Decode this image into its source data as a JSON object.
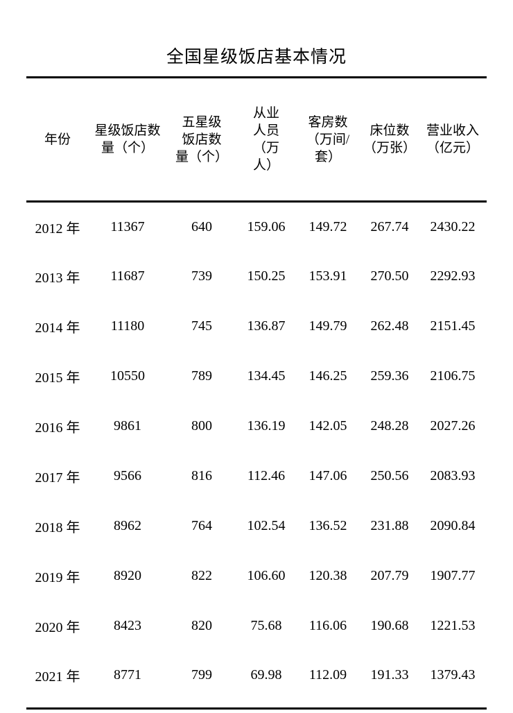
{
  "title": "全国星级饭店基本情况",
  "table": {
    "headers": [
      "年份",
      "星级饭店数\n量（个）",
      "五星级\n饭店数\n量（个）",
      "从业\n人员\n（万\n人）",
      "客房数\n（万间/\n套）",
      "床位数\n（万张）",
      "营业收入\n（亿元）"
    ],
    "rows": [
      [
        "2012 年",
        "11367",
        "640",
        "159.06",
        "149.72",
        "267.74",
        "2430.22"
      ],
      [
        "2013 年",
        "11687",
        "739",
        "150.25",
        "153.91",
        "270.50",
        "2292.93"
      ],
      [
        "2014 年",
        "11180",
        "745",
        "136.87",
        "149.79",
        "262.48",
        "2151.45"
      ],
      [
        "2015 年",
        "10550",
        "789",
        "134.45",
        "146.25",
        "259.36",
        "2106.75"
      ],
      [
        "2016 年",
        "9861",
        "800",
        "136.19",
        "142.05",
        "248.28",
        "2027.26"
      ],
      [
        "2017 年",
        "9566",
        "816",
        "112.46",
        "147.06",
        "250.56",
        "2083.93"
      ],
      [
        "2018 年",
        "8962",
        "764",
        "102.54",
        "136.52",
        "231.88",
        "2090.84"
      ],
      [
        "2019 年",
        "8920",
        "822",
        "106.60",
        "120.38",
        "207.79",
        "1907.77"
      ],
      [
        "2020 年",
        "8423",
        "820",
        "75.68",
        "116.06",
        "190.68",
        "1221.53"
      ],
      [
        "2021 年",
        "8771",
        "799",
        "69.98",
        "112.09",
        "191.33",
        "1379.43"
      ]
    ]
  }
}
